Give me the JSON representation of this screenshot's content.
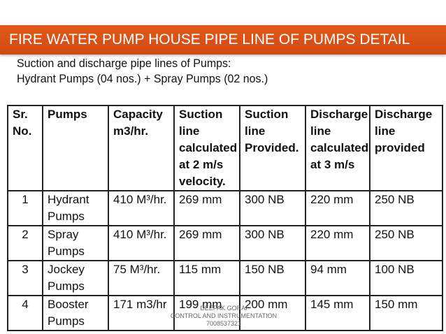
{
  "banner": {
    "title": "FIRE WATER PUMP HOUSE PIPE LINE OF PUMPS DETAIL"
  },
  "intro": {
    "line1": "Suction and discharge  pipe lines of Pumps:",
    "line2": "Hydrant Pumps (04 nos.) + Spray Pumps (02 nos.)"
  },
  "table": {
    "headers": [
      "Sr. No.",
      "Pumps",
      "Capacity m3/hr.",
      "Suction line calculated at 2 m/s velocity.",
      "Suction line Provided.",
      "Discharge line calculated at 3 m/s",
      "Discharge line provided"
    ],
    "rows": [
      [
        "1",
        "Hydrant Pumps",
        "410 M³/hr.",
        "269 mm",
        "300 NB",
        "220 mm",
        "250 NB"
      ],
      [
        "2",
        "Spray Pumps",
        "410 M³/hr.",
        "269 mm",
        "300 NB",
        "220 mm",
        "250 NB"
      ],
      [
        "3",
        "Jockey Pumps",
        "75 M³/hr.",
        "115 mm",
        "150 NB",
        "94 mm",
        "100 NB"
      ],
      [
        "4",
        "Booster Pumps",
        "171 m3/hr",
        "199 mm",
        "200 mm",
        "145 mm",
        "150 mm"
      ]
    ]
  },
  "footer": {
    "name": "DEEPAK GORAI",
    "dept": "CONTROL AND INSTRUMENTATION",
    "phone": "7008537321"
  }
}
